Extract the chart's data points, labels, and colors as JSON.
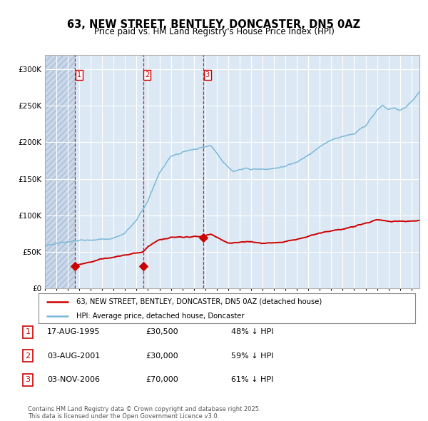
{
  "title": "63, NEW STREET, BENTLEY, DONCASTER, DN5 0AZ",
  "subtitle": "Price paid vs. HM Land Registry's House Price Index (HPI)",
  "title_fontsize": 10.5,
  "subtitle_fontsize": 8.5,
  "plot_bg_color": "#dce9f5",
  "grid_color": "#ffffff",
  "hpi_color": "#7ab8d9",
  "price_color": "#cc0000",
  "marker_color": "#cc0000",
  "dashed_color": "#cc0000",
  "ylim": [
    0,
    320000
  ],
  "yticks": [
    0,
    50000,
    100000,
    150000,
    200000,
    250000,
    300000
  ],
  "ytick_labels": [
    "£0",
    "£50K",
    "£100K",
    "£150K",
    "£200K",
    "£250K",
    "£300K"
  ],
  "xlim_start": 1993.0,
  "xlim_end": 2025.7,
  "xticks": [
    1993,
    1994,
    1995,
    1996,
    1997,
    1998,
    1999,
    2000,
    2001,
    2002,
    2003,
    2004,
    2005,
    2006,
    2007,
    2008,
    2009,
    2010,
    2011,
    2012,
    2013,
    2014,
    2015,
    2016,
    2017,
    2018,
    2019,
    2020,
    2021,
    2022,
    2023,
    2024,
    2025
  ],
  "hatch_end": 1995.62,
  "sale1_x": 1995.62,
  "sale1_y": 30500,
  "sale2_x": 2001.58,
  "sale2_y": 30000,
  "sale3_x": 2006.83,
  "sale3_y": 70000,
  "vline1_x": 1995.62,
  "vline2_x": 2001.58,
  "vline3_x": 2006.83,
  "legend_label_red": "63, NEW STREET, BENTLEY, DONCASTER, DN5 0AZ (detached house)",
  "legend_label_blue": "HPI: Average price, detached house, Doncaster",
  "table_rows": [
    {
      "num": "1",
      "date": "17-AUG-1995",
      "price": "£30,500",
      "note": "48% ↓ HPI"
    },
    {
      "num": "2",
      "date": "03-AUG-2001",
      "price": "£30,000",
      "note": "59% ↓ HPI"
    },
    {
      "num": "3",
      "date": "03-NOV-2006",
      "price": "£70,000",
      "note": "61% ↓ HPI"
    }
  ],
  "footer": "Contains HM Land Registry data © Crown copyright and database right 2025.\nThis data is licensed under the Open Government Licence v3.0."
}
